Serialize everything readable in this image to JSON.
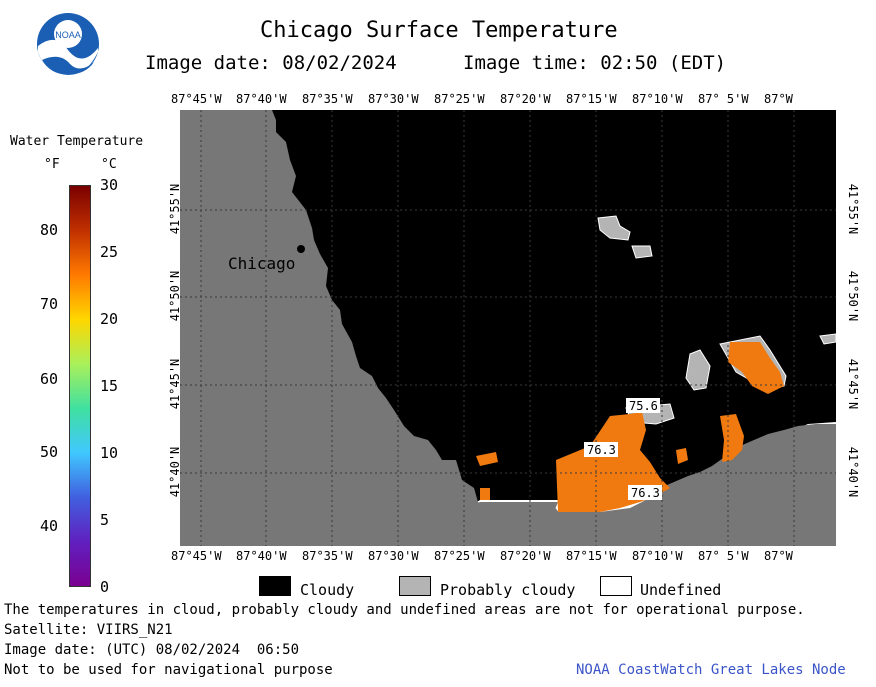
{
  "header": {
    "logo_text": "NOAA",
    "title": "Chicago Surface Temperature",
    "image_date": "Image date: 08/02/2024",
    "image_time": "Image time: 02:50 (EDT)"
  },
  "colorbar": {
    "title": "Water Temperature",
    "unit_f": "°F",
    "unit_c": "°C",
    "f_ticks": [
      "80",
      "70",
      "60",
      "50",
      "40"
    ],
    "c_ticks": [
      "30",
      "25",
      "20",
      "15",
      "10",
      "5",
      "0"
    ],
    "colors": [
      "#7a0000",
      "#c03000",
      "#ff7a00",
      "#ffd700",
      "#aaf05a",
      "#40e0a0",
      "#40c8ff",
      "#4060e0",
      "#6020c0",
      "#7a0090"
    ]
  },
  "map": {
    "lon_labels": [
      "87°45'W",
      "87°40'W",
      "87°35'W",
      "87°30'W",
      "87°25'W",
      "87°20'W",
      "87°15'W",
      "87°10'W",
      "87° 5'W",
      "87°W"
    ],
    "lat_labels": [
      "41°55'N",
      "41°50'N",
      "41°45'N",
      "41°40'N"
    ],
    "city_label": "Chicago",
    "temp_labels": [
      "75.6",
      "76.3",
      "76.3"
    ],
    "colors": {
      "land": "#777777",
      "cloud": "#000000",
      "probably_cloudy": "#b4b4b4",
      "undefined": "#ffffff",
      "warm_water": "#f07a10"
    }
  },
  "legend": {
    "cloudy": "Cloudy",
    "probably_cloudy": "Probably cloudy",
    "undefined": "Undefined"
  },
  "footer": {
    "disclaimer": "The temperatures in cloud, probably cloudy and undefined areas are not for operational purpose.",
    "satellite": "Satellite: VIIRS_N21",
    "utc_date": "Image date: (UTC) 08/02/2024  06:50",
    "nav_note": "Not to be used for navigational purpose",
    "credit": "NOAA CoastWatch Great Lakes Node"
  }
}
